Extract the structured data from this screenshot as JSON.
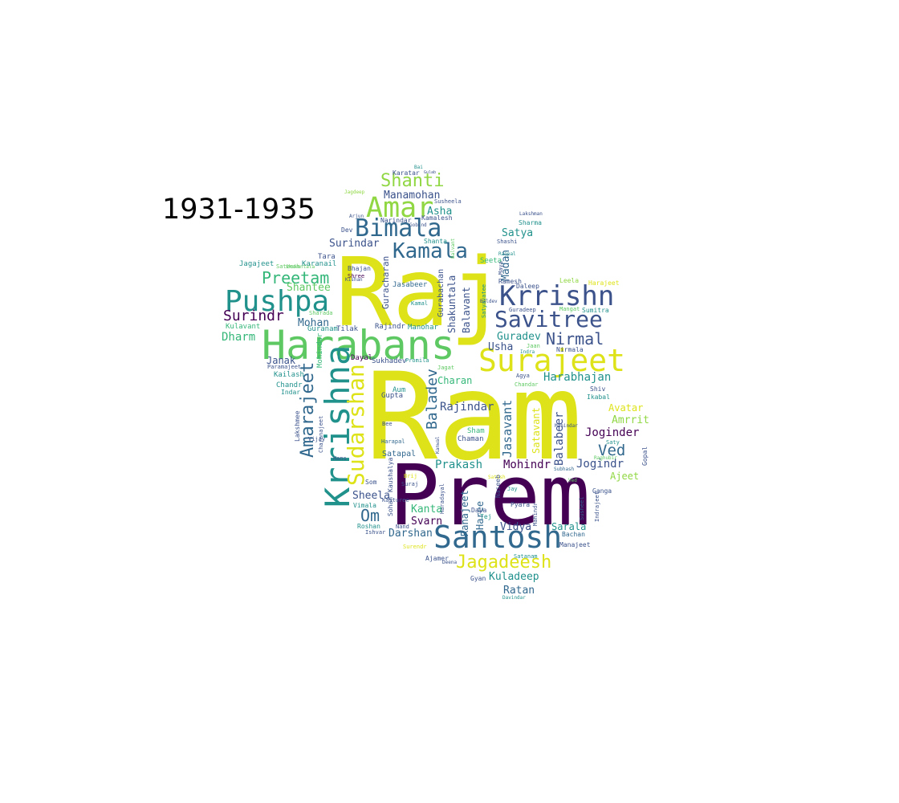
{
  "title": "1931-1935",
  "palette": {
    "c1": "#440154",
    "c2": "#3b528b",
    "c3": "#31688e",
    "c4": "#21918c",
    "c5": "#35b779",
    "c6": "#90d743",
    "c7": "#dde318",
    "c8": "#2c728e",
    "c9": "#5ec962",
    "c10": "#fde725"
  },
  "words": [
    {
      "text": "Ram",
      "size": 150,
      "color": "#dde318"
    },
    {
      "text": "Raj",
      "size": 118,
      "color": "#dde318"
    },
    {
      "text": "Prem",
      "size": 104,
      "color": "#440154"
    },
    {
      "text": "Harabans",
      "size": 50,
      "color": "#5ec962"
    },
    {
      "text": "Krrishna",
      "size": 42,
      "color": "#21918c"
    },
    {
      "text": "Santosh",
      "size": 38,
      "color": "#31688e"
    },
    {
      "text": "Surajeet",
      "size": 38,
      "color": "#dde318"
    },
    {
      "text": "Pushpa",
      "size": 36,
      "color": "#21918c"
    },
    {
      "text": "Amar",
      "size": 35,
      "color": "#90d743"
    },
    {
      "text": "Krrishn",
      "size": 34,
      "color": "#3b528b"
    },
    {
      "text": "Sudarshan",
      "size": 28,
      "color": "#dde318"
    },
    {
      "text": "Bimala",
      "size": 30,
      "color": "#31688e"
    },
    {
      "text": "Savitree",
      "size": 28,
      "color": "#3b528b"
    },
    {
      "text": "Kamala",
      "size": 26,
      "color": "#31688e"
    },
    {
      "text": "Amarajeet",
      "size": 22,
      "color": "#31688e"
    },
    {
      "text": "Jagadeesh",
      "size": 22,
      "color": "#dde318"
    },
    {
      "text": "Shanti",
      "size": 22,
      "color": "#90d743"
    },
    {
      "text": "Preetam",
      "size": 20,
      "color": "#35b779"
    },
    {
      "text": "Nirmal",
      "size": 20,
      "color": "#3b528b"
    },
    {
      "text": "Baladev",
      "size": 18,
      "color": "#31688e"
    },
    {
      "text": "Om",
      "size": 20,
      "color": "#31688e"
    },
    {
      "text": "Ved",
      "size": 19,
      "color": "#31688e"
    },
    {
      "text": "Surindr",
      "size": 18,
      "color": "#440154"
    },
    {
      "text": "Jasavant",
      "size": 15,
      "color": "#31688e"
    },
    {
      "text": "Harabhajan",
      "size": 14,
      "color": "#21918c"
    },
    {
      "text": "Joginder",
      "size": 14,
      "color": "#440154"
    },
    {
      "text": "Jogindr",
      "size": 14,
      "color": "#3b528b"
    },
    {
      "text": "Balabeer",
      "size": 14,
      "color": "#3b528b"
    },
    {
      "text": "Rajindar",
      "size": 14,
      "color": "#3b528b"
    },
    {
      "text": "Prakash",
      "size": 14,
      "color": "#21918c"
    },
    {
      "text": "Mohindr",
      "size": 14,
      "color": "#440154"
    },
    {
      "text": "Dharm",
      "size": 14,
      "color": "#35b779"
    },
    {
      "text": "Mohan",
      "size": 13,
      "color": "#31688e"
    },
    {
      "text": "Shantee",
      "size": 13,
      "color": "#5ec962"
    },
    {
      "text": "Surindar",
      "size": 13,
      "color": "#3b528b"
    },
    {
      "text": "Manamohan",
      "size": 13,
      "color": "#3b528b"
    },
    {
      "text": "Asha",
      "size": 13,
      "color": "#21918c"
    },
    {
      "text": "Satya",
      "size": 13,
      "color": "#21918c"
    },
    {
      "text": "Madan",
      "size": 13,
      "color": "#31688e"
    },
    {
      "text": "Guradev",
      "size": 13,
      "color": "#21918c"
    },
    {
      "text": "Usha",
      "size": 13,
      "color": "#3b528b"
    },
    {
      "text": "Janak",
      "size": 12,
      "color": "#3b528b"
    },
    {
      "text": "Amrrit",
      "size": 13,
      "color": "#90d743"
    },
    {
      "text": "Avatar",
      "size": 12,
      "color": "#dde318"
    },
    {
      "text": "Shakuntala",
      "size": 12,
      "color": "#3b528b"
    },
    {
      "text": "Balavant",
      "size": 12,
      "color": "#3b528b"
    },
    {
      "text": "Gurabachan",
      "size": 10,
      "color": "#3b528b"
    },
    {
      "text": "Guracharan",
      "size": 11,
      "color": "#3b528b"
    },
    {
      "text": "Satavant",
      "size": 12,
      "color": "#dde318"
    },
    {
      "text": "Sheela",
      "size": 13,
      "color": "#3b528b"
    },
    {
      "text": "Kanta",
      "size": 13,
      "color": "#35b779"
    },
    {
      "text": "Svarn",
      "size": 13,
      "color": "#440154"
    },
    {
      "text": "Darshan",
      "size": 13,
      "color": "#31688e"
    },
    {
      "text": "Vidya",
      "size": 13,
      "color": "#3b528b"
    },
    {
      "text": "Sarala",
      "size": 12,
      "color": "#21918c"
    },
    {
      "text": "Kuladeep",
      "size": 13,
      "color": "#21918c"
    },
    {
      "text": "Ratan",
      "size": 13,
      "color": "#31688e"
    },
    {
      "text": "Haree",
      "size": 12,
      "color": "#31688e"
    },
    {
      "text": "Ranajeet",
      "size": 12,
      "color": "#31688e"
    },
    {
      "text": "Ajeet",
      "size": 12,
      "color": "#90d743"
    },
    {
      "text": "Charan",
      "size": 12,
      "color": "#35b779"
    },
    {
      "text": "Chaman",
      "size": 9,
      "color": "#3b528b"
    },
    {
      "text": "Sham",
      "size": 9,
      "color": "#35b779"
    },
    {
      "text": "Satapal",
      "size": 10,
      "color": "#31688e"
    },
    {
      "text": "Gupta",
      "size": 9,
      "color": "#3b528b"
    },
    {
      "text": "Aum",
      "size": 9,
      "color": "#21918c"
    },
    {
      "text": "Tara",
      "size": 9,
      "color": "#3b528b"
    },
    {
      "text": "Karanail",
      "size": 9,
      "color": "#21918c"
    },
    {
      "text": "Jagajeet",
      "size": 9,
      "color": "#21918c"
    },
    {
      "text": "Sateesh",
      "size": 7,
      "color": "#5ec962"
    },
    {
      "text": "Kailash",
      "size": 9,
      "color": "#21918c"
    },
    {
      "text": "Chandr",
      "size": 9,
      "color": "#21918c"
    },
    {
      "text": "Indar",
      "size": 8,
      "color": "#21918c"
    },
    {
      "text": "Kulavant",
      "size": 9,
      "color": "#35b779"
    },
    {
      "text": "Paramajeet",
      "size": 7,
      "color": "#3b528b"
    },
    {
      "text": "Lakshmee",
      "size": 8,
      "color": "#3b528b"
    },
    {
      "text": "Charanajeet",
      "size": 7,
      "color": "#3b528b"
    },
    {
      "text": "Mohindar",
      "size": 9,
      "color": "#35b779"
    },
    {
      "text": "Dayal",
      "size": 9,
      "color": "#440154"
    },
    {
      "text": "Sukhadev",
      "size": 9,
      "color": "#3b528b"
    },
    {
      "text": "Promila",
      "size": 7,
      "color": "#21918c"
    },
    {
      "text": "Rajindr",
      "size": 9,
      "color": "#3b528b"
    },
    {
      "text": "Manohar",
      "size": 9,
      "color": "#21918c"
    },
    {
      "text": "Guranam",
      "size": 9,
      "color": "#21918c"
    },
    {
      "text": "Tilak",
      "size": 9,
      "color": "#3b528b"
    },
    {
      "text": "Jasabeer",
      "size": 9,
      "color": "#31688e"
    },
    {
      "text": "Bhajan",
      "size": 8,
      "color": "#3b528b"
    },
    {
      "text": "Shree",
      "size": 7,
      "color": "#440154"
    },
    {
      "text": "Narindar",
      "size": 8,
      "color": "#3b528b"
    },
    {
      "text": "Kamalesh",
      "size": 8,
      "color": "#3b528b"
    },
    {
      "text": "Shanta",
      "size": 8,
      "color": "#21918c"
    },
    {
      "text": "Seeta",
      "size": 9,
      "color": "#35b779"
    },
    {
      "text": "Ramesh",
      "size": 8,
      "color": "#3b528b"
    },
    {
      "text": "Daleep",
      "size": 8,
      "color": "#3b528b"
    },
    {
      "text": "Leela",
      "size": 8,
      "color": "#90d743"
    },
    {
      "text": "Harajeet",
      "size": 8,
      "color": "#dde318"
    },
    {
      "text": "Sumitra",
      "size": 8,
      "color": "#21918c"
    },
    {
      "text": "Guradeep",
      "size": 7,
      "color": "#3b528b"
    },
    {
      "text": "Mangat",
      "size": 7,
      "color": "#5ec962"
    },
    {
      "text": "Nirmala",
      "size": 8,
      "color": "#3b528b"
    },
    {
      "text": "Shiv",
      "size": 8,
      "color": "#3b528b"
    },
    {
      "text": "Ikabal",
      "size": 8,
      "color": "#21918c"
    },
    {
      "text": "Agya",
      "size": 7,
      "color": "#3b528b"
    },
    {
      "text": "Jagat",
      "size": 7,
      "color": "#5ec962"
    },
    {
      "text": "Karatar",
      "size": 8,
      "color": "#3b528b"
    },
    {
      "text": "Sharma",
      "size": 8,
      "color": "#21918c"
    },
    {
      "text": "Shashi",
      "size": 7,
      "color": "#3b528b"
    },
    {
      "text": "Lakshman",
      "size": 6,
      "color": "#3b528b"
    },
    {
      "text": "Arjun",
      "size": 6,
      "color": "#3b528b"
    },
    {
      "text": "Dev",
      "size": 8,
      "color": "#3b528b"
    },
    {
      "text": "Susheela",
      "size": 7,
      "color": "#3b528b"
    },
    {
      "text": "Jagdeep",
      "size": 6,
      "color": "#90d743"
    },
    {
      "text": "Shakuntala",
      "size": 6,
      "color": "#5ec962"
    },
    {
      "text": "Sharada",
      "size": 7,
      "color": "#5ec962"
    },
    {
      "text": "Hans",
      "size": 7,
      "color": "#3b528b"
    },
    {
      "text": "Vijay",
      "size": 7,
      "color": "#3b528b"
    },
    {
      "text": "Harapal",
      "size": 7,
      "color": "#31688e"
    },
    {
      "text": "Kaushalya",
      "size": 8,
      "color": "#3b528b"
    },
    {
      "text": "Kasturee",
      "size": 7,
      "color": "#3b528b"
    },
    {
      "text": "Haradayal",
      "size": 7,
      "color": "#3b528b"
    },
    {
      "text": "Nand",
      "size": 7,
      "color": "#3b528b"
    },
    {
      "text": "Vimala",
      "size": 8,
      "color": "#21918c"
    },
    {
      "text": "Roshan",
      "size": 8,
      "color": "#21918c"
    },
    {
      "text": "Ishvar",
      "size": 7,
      "color": "#3b528b"
    },
    {
      "text": "Sohan",
      "size": 8,
      "color": "#3b528b"
    },
    {
      "text": "Som",
      "size": 8,
      "color": "#3b528b"
    },
    {
      "text": "Surendr",
      "size": 7,
      "color": "#dde318"
    },
    {
      "text": "Ajamer",
      "size": 8,
      "color": "#3b528b"
    },
    {
      "text": "Gyan",
      "size": 8,
      "color": "#3b528b"
    },
    {
      "text": "Davindar",
      "size": 6,
      "color": "#21918c"
    },
    {
      "text": "Manajeet",
      "size": 8,
      "color": "#3b528b"
    },
    {
      "text": "Bachan",
      "size": 8,
      "color": "#31688e"
    },
    {
      "text": "Pyara",
      "size": 8,
      "color": "#3b528b"
    },
    {
      "text": "Daya",
      "size": 8,
      "color": "#3b528b"
    },
    {
      "text": "Tej",
      "size": 8,
      "color": "#21918c"
    },
    {
      "text": "Naseeb",
      "size": 8,
      "color": "#3b528b"
    },
    {
      "text": "Mahindr",
      "size": 7,
      "color": "#3b528b"
    },
    {
      "text": "Jay",
      "size": 7,
      "color": "#21918c"
    },
    {
      "text": "Ganga",
      "size": 8,
      "color": "#3b528b"
    },
    {
      "text": "Gopal",
      "size": 8,
      "color": "#3b528b"
    },
    {
      "text": "Indrajeet",
      "size": 7,
      "color": "#3b528b"
    },
    {
      "text": "Susheel",
      "size": 7,
      "color": "#31688e"
    },
    {
      "text": "Satish",
      "size": 6,
      "color": "#dde318"
    },
    {
      "text": "Subhash",
      "size": 6,
      "color": "#31688e"
    },
    {
      "text": "Kamal",
      "size": 7,
      "color": "#21918c"
    },
    {
      "text": "Baldev",
      "size": 6,
      "color": "#3b528b"
    },
    {
      "text": "Satanam",
      "size": 7,
      "color": "#21918c"
    },
    {
      "text": "Deena",
      "size": 6,
      "color": "#3b528b"
    },
    {
      "text": "Bee",
      "size": 7,
      "color": "#3b528b"
    },
    {
      "text": "Brij",
      "size": 7,
      "color": "#dde318"
    },
    {
      "text": "Suraj",
      "size": 7,
      "color": "#3b528b"
    },
    {
      "text": "Kanwal",
      "size": 6,
      "color": "#3b528b"
    },
    {
      "text": "Indra",
      "size": 6,
      "color": "#21918c"
    },
    {
      "text": "Chandar",
      "size": 7,
      "color": "#5ec962"
    },
    {
      "text": "Satyavatee",
      "size": 7,
      "color": "#21918c"
    },
    {
      "text": "Maya",
      "size": 7,
      "color": "#3b528b"
    },
    {
      "text": "Balvant",
      "size": 6,
      "color": "#5ec962"
    },
    {
      "text": "Bai",
      "size": 6,
      "color": "#21918c"
    },
    {
      "text": "Gulab",
      "size": 5,
      "color": "#3b528b"
    },
    {
      "text": "Jaan",
      "size": 7,
      "color": "#5ec962"
    },
    {
      "text": "Mahindar",
      "size": 6,
      "color": "#3b528b"
    },
    {
      "text": "Gobind",
      "size": 6,
      "color": "#3b528b"
    },
    {
      "text": "Rajpal",
      "size": 6,
      "color": "#21918c"
    },
    {
      "text": "Saty",
      "size": 7,
      "color": "#21918c"
    },
    {
      "text": "Kishan",
      "size": 6,
      "color": "#3b528b"
    },
    {
      "text": "Ved",
      "size": 6,
      "color": "#5ec962"
    },
    {
      "text": "Raghubir",
      "size": 6,
      "color": "#5ec962"
    }
  ]
}
